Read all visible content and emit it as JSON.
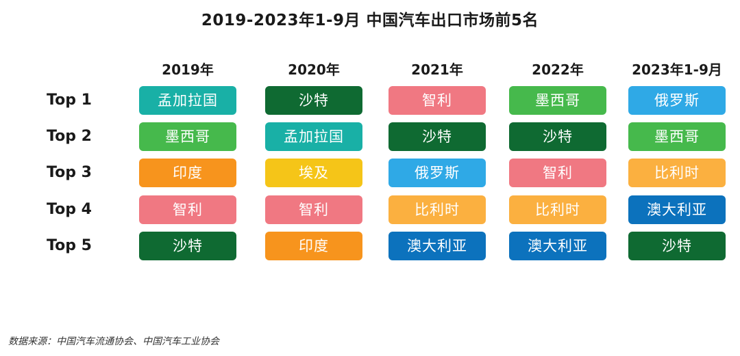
{
  "chart_data": {
    "type": "table",
    "title": "2019-2023年1-9月 中国汽车出口市场前5名",
    "columns": [
      "2019年",
      "2020年",
      "2021年",
      "2022年",
      "2023年1-9月"
    ],
    "rows": [
      "Top 1",
      "Top 2",
      "Top 3",
      "Top 4",
      "Top 5"
    ],
    "values": [
      [
        "孟加拉国",
        "墨西哥",
        "印度",
        "智利",
        "沙特"
      ],
      [
        "沙特",
        "孟加拉国",
        "埃及",
        "智利",
        "印度"
      ],
      [
        "智利",
        "沙特",
        "俄罗斯",
        "比利时",
        "澳大利亚"
      ],
      [
        "墨西哥",
        "沙特",
        "智利",
        "比利时",
        "澳大利亚"
      ],
      [
        "俄罗斯",
        "墨西哥",
        "比利时",
        "澳大利亚",
        "沙特"
      ]
    ],
    "country_colors": {
      "孟加拉国": "#19b0a6",
      "沙特": "#0f6a32",
      "智利": "#f07882",
      "墨西哥": "#46b94c",
      "俄罗斯": "#2fa9e6",
      "印度": "#f7941d",
      "埃及": "#f5c518",
      "比利时": "#fbb040",
      "澳大利亚": "#0c72bd"
    }
  },
  "source": "数据来源：中国汽车流通协会、中国汽车工业协会"
}
